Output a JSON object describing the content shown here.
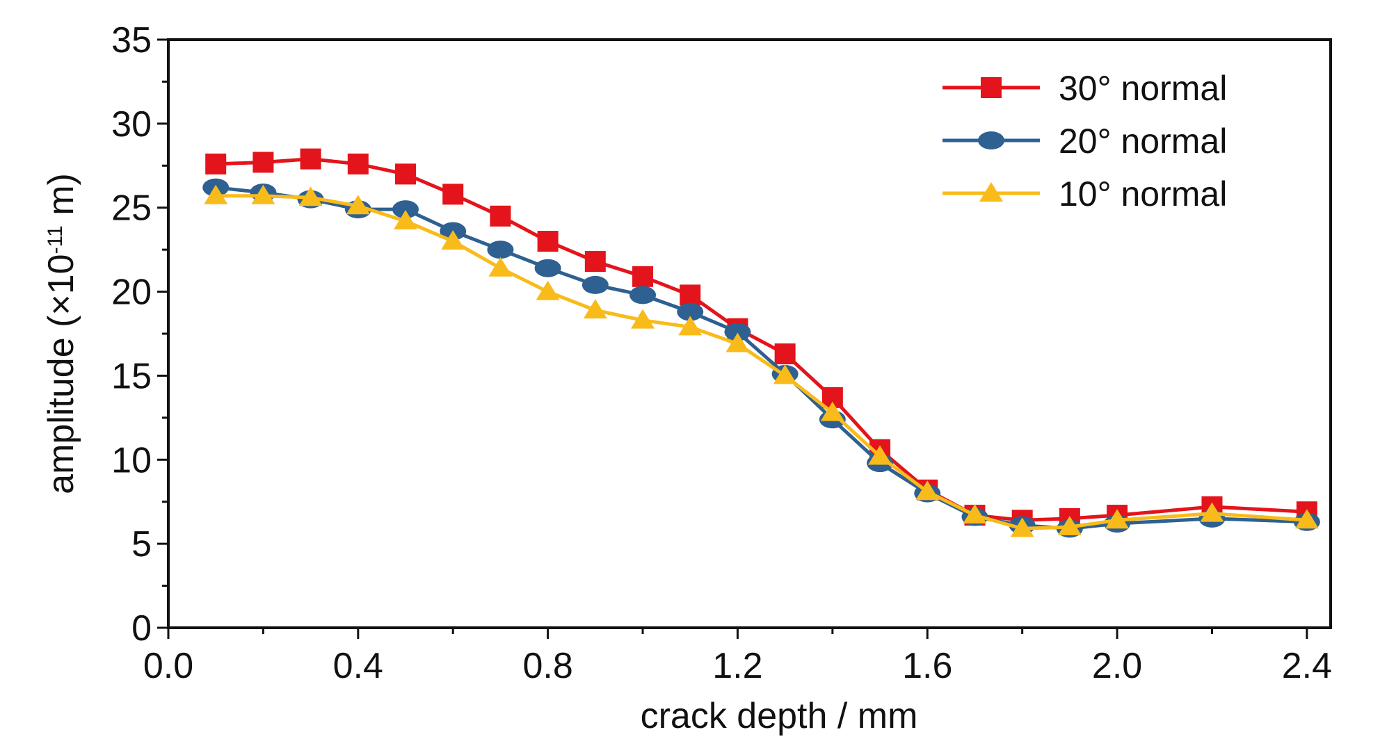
{
  "chart_data": {
    "type": "line",
    "xlabel": "crack depth / mm",
    "ylabel": {
      "prefix": "amplitude (×10",
      "exponent": "-11",
      "suffix": " m)"
    },
    "xlim": [
      0.0,
      2.45
    ],
    "ylim": [
      0,
      35
    ],
    "x_ticks": [
      0.0,
      0.4,
      0.8,
      1.2,
      1.6,
      2.0,
      2.4
    ],
    "x_tick_labels": [
      "0.0",
      "0.4",
      "0.8",
      "1.2",
      "1.6",
      "2.0",
      "2.4"
    ],
    "y_ticks": [
      0,
      5,
      10,
      15,
      20,
      25,
      30,
      35
    ],
    "y_tick_labels": [
      "0",
      "5",
      "10",
      "15",
      "20",
      "25",
      "30",
      "35"
    ],
    "grid": false,
    "legend_position": "top-right",
    "x": [
      0.1,
      0.2,
      0.3,
      0.4,
      0.5,
      0.6,
      0.7,
      0.8,
      0.9,
      1.0,
      1.1,
      1.2,
      1.3,
      1.4,
      1.5,
      1.6,
      1.7,
      1.8,
      1.9,
      2.0,
      2.2,
      2.4
    ],
    "series": [
      {
        "name": "30° normal",
        "color": "#e3141b",
        "marker": "square",
        "values": [
          27.6,
          27.7,
          27.9,
          27.6,
          27.0,
          25.8,
          24.5,
          23.0,
          21.8,
          20.9,
          19.8,
          17.8,
          16.3,
          13.7,
          10.6,
          8.2,
          6.7,
          6.4,
          6.5,
          6.7,
          7.2,
          6.9
        ]
      },
      {
        "name": "20° normal",
        "color": "#2e6091",
        "marker": "circle",
        "values": [
          26.2,
          25.9,
          25.5,
          24.9,
          24.9,
          23.6,
          22.5,
          21.4,
          20.4,
          19.8,
          18.8,
          17.6,
          15.1,
          12.4,
          9.8,
          8.0,
          6.6,
          6.1,
          5.9,
          6.2,
          6.5,
          6.3
        ]
      },
      {
        "name": "10° normal",
        "color": "#f8bb1a",
        "marker": "triangle",
        "values": [
          25.7,
          25.7,
          25.6,
          25.1,
          24.2,
          23.0,
          21.4,
          20.0,
          18.9,
          18.3,
          17.9,
          16.9,
          15.0,
          12.8,
          10.2,
          8.1,
          6.7,
          5.9,
          6.0,
          6.4,
          6.8,
          6.4
        ]
      }
    ]
  }
}
